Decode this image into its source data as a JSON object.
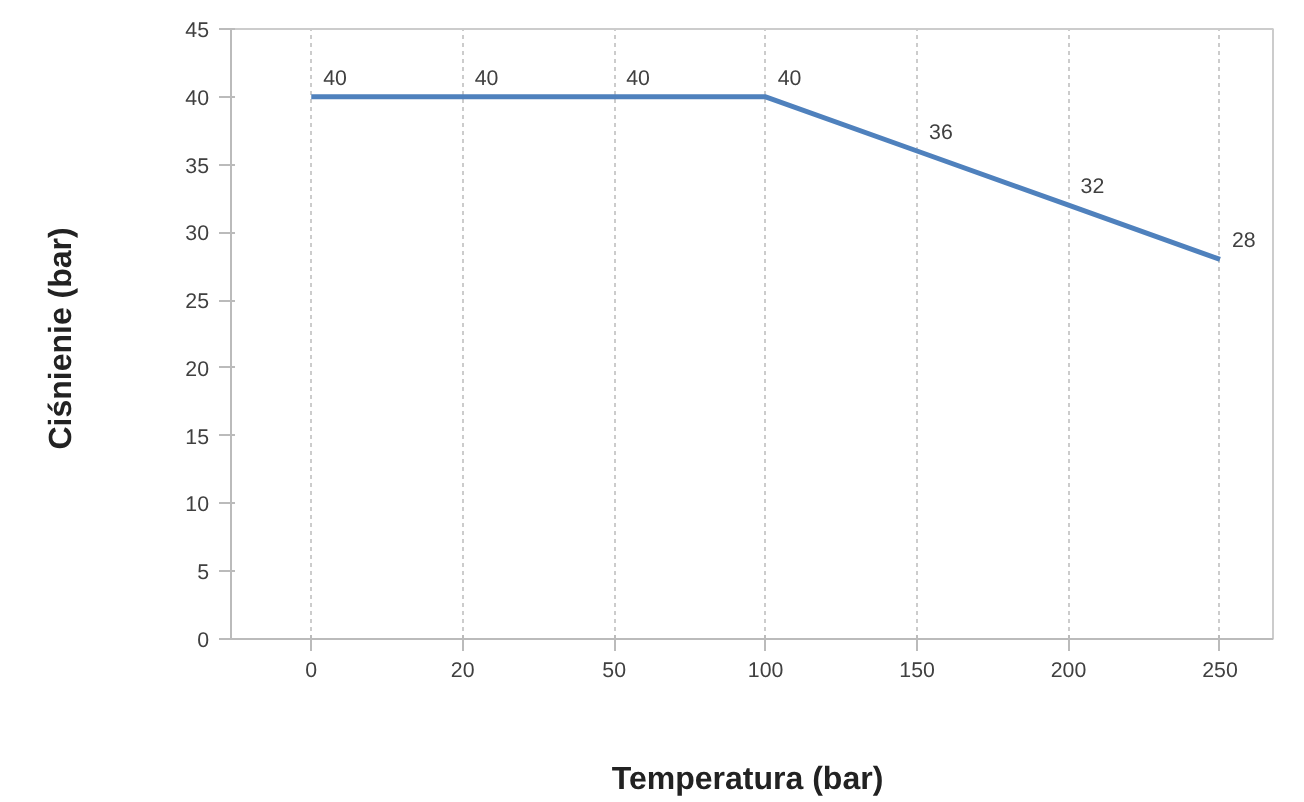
{
  "chart_data": {
    "type": "line",
    "xlabel": "Temperatura  (bar)",
    "ylabel": "Ciśnienie  (bar)",
    "categories": [
      "0",
      "20",
      "50",
      "100",
      "150",
      "200",
      "250"
    ],
    "series": [
      {
        "color": "#4f81bd",
        "values": [
          40,
          40,
          40,
          40,
          36,
          32,
          28
        ]
      }
    ],
    "ylim": [
      0,
      45
    ],
    "yticks": [
      0,
      5,
      10,
      15,
      20,
      25,
      30,
      35,
      40,
      45
    ],
    "grid": "x",
    "data_labels": true,
    "marker": "none",
    "line_style": "solid"
  }
}
